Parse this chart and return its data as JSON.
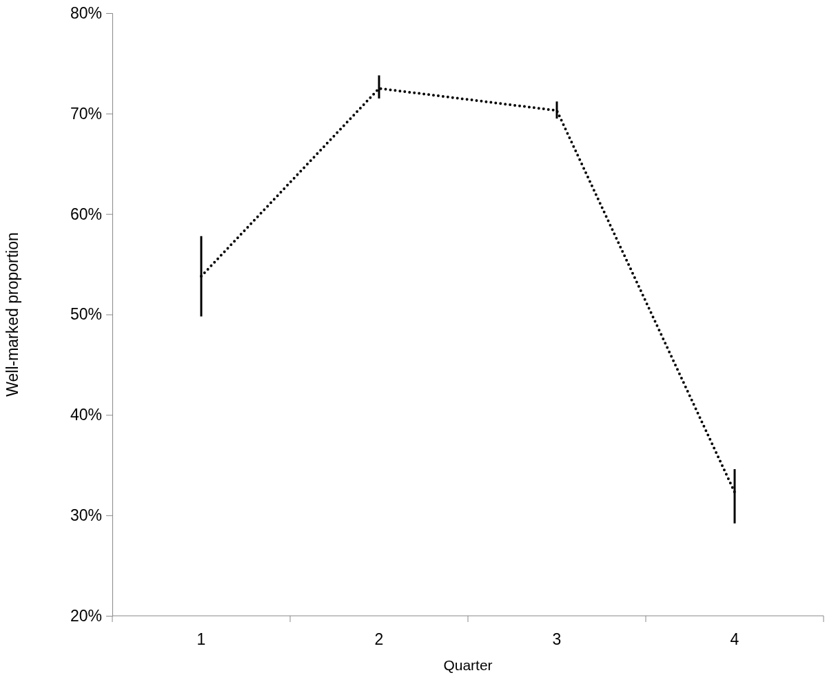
{
  "chart_data": {
    "type": "line",
    "xlabel": "Quarter",
    "ylabel": "Well-marked proportion",
    "categories": [
      "1",
      "2",
      "3",
      "4"
    ],
    "values": [
      53.8,
      72.5,
      70.3,
      32.3
    ],
    "errors": [
      [
        49.8,
        57.8
      ],
      [
        71.5,
        73.8
      ],
      [
        69.5,
        71.2
      ],
      [
        29.2,
        34.6
      ]
    ],
    "color": "#000000",
    "line_style": "dotted",
    "marker": "none",
    "grid": false,
    "ylim": [
      20,
      80
    ],
    "yticks": [
      {
        "value": 20,
        "label": "20%"
      },
      {
        "value": 30,
        "label": "30%"
      },
      {
        "value": 40,
        "label": "40%"
      },
      {
        "value": 50,
        "label": "50%"
      },
      {
        "value": 60,
        "label": "60%"
      },
      {
        "value": 70,
        "label": "70%"
      },
      {
        "value": 80,
        "label": "80%"
      }
    ]
  }
}
